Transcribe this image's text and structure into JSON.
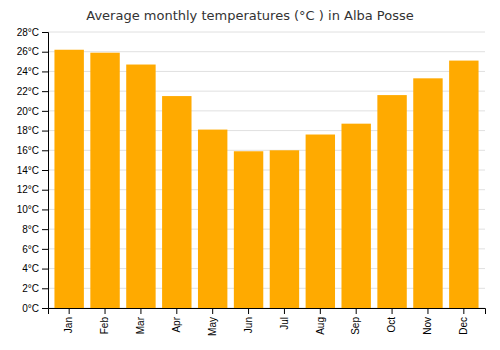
{
  "chart_data": {
    "type": "bar",
    "title": "Average monthly temperatures (°C ) in Alba Posse",
    "categories": [
      "Jan",
      "Feb",
      "Mar",
      "Apr",
      "May",
      "Jun",
      "Jul",
      "Aug",
      "Sep",
      "Oct",
      "Nov",
      "Dec"
    ],
    "values": [
      26.2,
      25.9,
      24.7,
      21.5,
      18.1,
      15.9,
      16.0,
      17.6,
      18.7,
      21.6,
      23.3,
      25.1
    ],
    "color": "#FFAA00",
    "ylim": [
      0,
      28
    ],
    "yticks": [
      {
        "value": 0,
        "label": "0°C"
      },
      {
        "value": 2,
        "label": "2°C"
      },
      {
        "value": 4,
        "label": "4°C"
      },
      {
        "value": 6,
        "label": "6°C"
      },
      {
        "value": 8,
        "label": "8°C"
      },
      {
        "value": 10,
        "label": "10°C"
      },
      {
        "value": 12,
        "label": "12°C"
      },
      {
        "value": 14,
        "label": "14°C"
      },
      {
        "value": 16,
        "label": "16°C"
      },
      {
        "value": 18,
        "label": "18°C"
      },
      {
        "value": 20,
        "label": "20°C"
      },
      {
        "value": 22,
        "label": "22°C"
      },
      {
        "value": 24,
        "label": "24°C"
      },
      {
        "value": 26,
        "label": "26°C"
      },
      {
        "value": 28,
        "label": "28°C"
      }
    ],
    "grid": true
  }
}
